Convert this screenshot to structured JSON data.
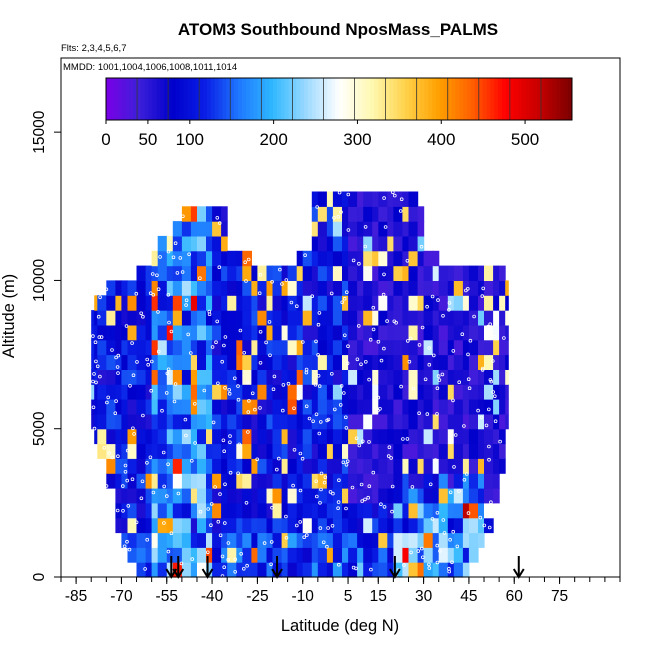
{
  "chart_data": {
    "type": "heatmap",
    "title": "ATOM3 Southbound NposMass_PALMS",
    "flights_label": "Flts: 2,3,4,5,6,7",
    "dates_label": "MMDD: 1001,1004,1006,1008,1011,1014",
    "xlabel": "Latitude (deg N)",
    "ylabel": "Altitude (m)",
    "xlim": [
      -90,
      95
    ],
    "ylim": [
      0,
      17500
    ],
    "x_ticks": [
      -85,
      -70,
      -55,
      -40,
      -25,
      -10,
      5,
      15,
      30,
      45,
      60,
      75
    ],
    "x_tick_labels": [
      "-85",
      "-70",
      "-55",
      "-40",
      "-25",
      "-10",
      "5",
      "15",
      "30",
      "45",
      "60",
      "75"
    ],
    "x_minor_step": 5,
    "y_ticks": [
      0,
      5000,
      10000,
      15000
    ],
    "y_tick_labels": [
      "0",
      "5000",
      "10000",
      "15000"
    ],
    "grid": false,
    "colorbar": {
      "position": "top",
      "range": [
        0,
        556
      ],
      "ticks": [
        0,
        50,
        100,
        200,
        300,
        400,
        500
      ],
      "tick_labels": [
        "0",
        "50",
        "100",
        "200",
        "300",
        "400",
        "500"
      ],
      "colors": [
        "#7a00e6",
        "#3c1fd9",
        "#0000cc",
        "#0a1fe6",
        "#1f78ff",
        "#2fb8ff",
        "#9ad9ff",
        "#ffffff",
        "#fff8b0",
        "#ffd24a",
        "#ffa000",
        "#ff6000",
        "#ff0000",
        "#c80000",
        "#7a0000"
      ]
    },
    "latitude_bounds": [
      -80,
      -79,
      -78,
      -75,
      -72,
      -70,
      -68,
      -65,
      -62,
      -60,
      -58,
      -55,
      -53,
      -50,
      -47,
      -45,
      -42,
      -40,
      -37,
      -35,
      -32,
      -30,
      -27,
      -25,
      -22,
      -20,
      -17,
      -15,
      -12,
      -10,
      -7,
      -5,
      -2,
      0,
      3,
      5,
      8,
      10,
      13,
      15,
      18,
      20,
      23,
      25,
      28,
      30,
      33,
      35,
      38,
      40,
      43,
      45,
      48,
      50,
      53,
      55,
      57,
      58
    ],
    "altitude_bins": [
      250,
      750,
      1250,
      1750,
      2250,
      2750,
      3250,
      3750,
      4250,
      4750,
      5250,
      5750,
      6250,
      6750,
      7250,
      7750,
      8250,
      8750,
      9250,
      9750,
      10250,
      10750,
      11250,
      11750,
      12250,
      12750
    ],
    "ceiling_m": [
      9400,
      9900,
      9900,
      10000,
      10000,
      10000,
      10000,
      10500,
      10500,
      11000,
      11500,
      11500,
      12000,
      12500,
      12500,
      12500,
      12500,
      12500,
      12500,
      11000,
      11000,
      11000,
      10500,
      10500,
      10500,
      10500,
      10500,
      10500,
      11000,
      11000,
      13000,
      13000,
      13000,
      13000,
      13000,
      13000,
      13000,
      13000,
      13000,
      13000,
      13000,
      13000,
      13000,
      13000,
      12500,
      11000,
      11000,
      10500,
      10500,
      10500,
      10500,
      10500,
      10500,
      10500,
      10500,
      10500,
      10000
    ],
    "floor_m": [
      5000,
      4500,
      4000,
      3000,
      1500,
      1000,
      500,
      0,
      0,
      0,
      0,
      0,
      0,
      0,
      0,
      0,
      0,
      0,
      0,
      0,
      0,
      0,
      0,
      0,
      0,
      0,
      0,
      0,
      0,
      0,
      0,
      0,
      0,
      0,
      0,
      0,
      0,
      0,
      0,
      0,
      0,
      0,
      0,
      0,
      0,
      0,
      0,
      0,
      0,
      0,
      0,
      500,
      1000,
      1500,
      2500,
      3500,
      5000
    ],
    "profile_arrows_lat": [
      -53.5,
      -51.2,
      -41.5,
      -18.5,
      20.5,
      61.5
    ]
  }
}
